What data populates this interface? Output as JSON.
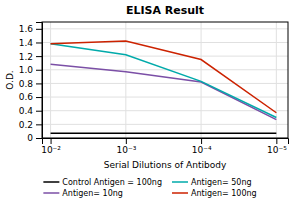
{
  "chart_data": {
    "type": "line",
    "title": "ELISA Result",
    "x_label": "Serial Dilutions of Antibody",
    "y_label": "O.D.",
    "x": [
      0.01,
      0.001,
      0.0001,
      1e-05
    ],
    "series": [
      {
        "name": "Control Antigen = 100ng",
        "color": "#000000",
        "values": [
          0.07,
          0.07,
          0.07,
          0.07
        ]
      },
      {
        "name": "Antigen= 10ng",
        "color": "#7B4FA6",
        "values": [
          1.08,
          0.97,
          0.82,
          0.27
        ]
      },
      {
        "name": "Antigen= 50ng",
        "color": "#00AAAA",
        "values": [
          1.38,
          1.22,
          0.83,
          0.3
        ]
      },
      {
        "name": "Antigen= 100ng",
        "color": "#CC2200",
        "values": [
          1.38,
          1.42,
          1.15,
          0.37
        ]
      }
    ],
    "log": "x",
    "xlim": [
      0.013,
      7e-06
    ],
    "xticks": [
      {
        "value": 0.01,
        "label": "10⁻²"
      },
      {
        "value": 0.001,
        "label": "10⁻³"
      },
      {
        "value": 0.0001,
        "label": "10⁻⁴"
      },
      {
        "value": 1e-05,
        "label": "10⁻⁵"
      }
    ],
    "ylim": [
      0,
      1.7
    ],
    "yticks": [
      0,
      0.2,
      0.4,
      0.6,
      0.8,
      {
        "value": 1.0,
        "label": "1.0"
      },
      1.2,
      1.4,
      1.6
    ],
    "grid": true,
    "legend": "bottom"
  }
}
